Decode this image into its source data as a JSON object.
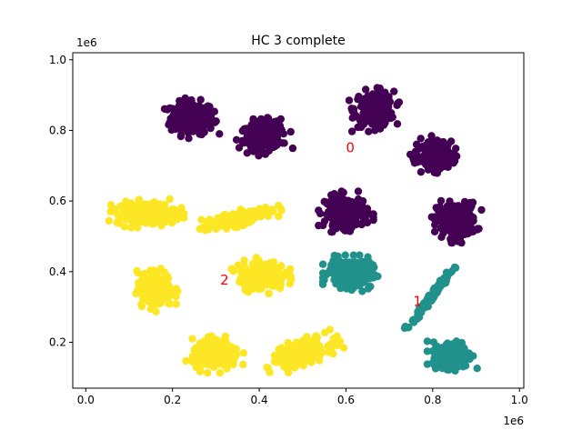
{
  "chart_data": {
    "type": "scatter",
    "title": "HC 3 complete",
    "xlabel": "",
    "ylabel": "",
    "x_offset_label": "1e6",
    "y_offset_label": "1e6",
    "xlim": [
      -0.03,
      1.01
    ],
    "ylim": [
      0.07,
      1.02
    ],
    "x_ticks": [
      0.0,
      0.2,
      0.4,
      0.6,
      0.8,
      1.0
    ],
    "x_tick_labels": [
      "0.0",
      "0.2",
      "0.4",
      "0.6",
      "0.8",
      "1.0"
    ],
    "y_ticks": [
      0.2,
      0.4,
      0.6,
      0.8,
      1.0
    ],
    "y_tick_labels": [
      "0.2",
      "0.4",
      "0.6",
      "0.8",
      "1.0"
    ],
    "grid": false,
    "colors": {
      "0": "#440154",
      "1": "#21918c",
      "2": "#fde725",
      "label": "#ff0000"
    },
    "cluster_labels": [
      {
        "text": "0",
        "x": 0.61,
        "y": 0.75
      },
      {
        "text": "1",
        "x": 0.765,
        "y": 0.315
      },
      {
        "text": "2",
        "x": 0.32,
        "y": 0.375
      }
    ],
    "blobs": [
      {
        "cluster": 0,
        "cx": 0.245,
        "cy": 0.835,
        "rx": 0.055,
        "ry": 0.05,
        "angle": 0,
        "n": 220
      },
      {
        "cluster": 0,
        "cx": 0.41,
        "cy": 0.785,
        "rx": 0.055,
        "ry": 0.045,
        "angle": 15,
        "n": 200
      },
      {
        "cluster": 0,
        "cx": 0.665,
        "cy": 0.86,
        "rx": 0.05,
        "ry": 0.055,
        "angle": 0,
        "n": 200
      },
      {
        "cluster": 0,
        "cx": 0.805,
        "cy": 0.73,
        "rx": 0.045,
        "ry": 0.05,
        "angle": -30,
        "n": 200
      },
      {
        "cluster": 0,
        "cx": 0.855,
        "cy": 0.545,
        "rx": 0.05,
        "ry": 0.055,
        "angle": 0,
        "n": 220
      },
      {
        "cluster": 0,
        "cx": 0.6,
        "cy": 0.57,
        "rx": 0.055,
        "ry": 0.05,
        "angle": 0,
        "n": 220
      },
      {
        "cluster": 1,
        "cx": 0.61,
        "cy": 0.395,
        "rx": 0.055,
        "ry": 0.045,
        "angle": 0,
        "n": 240
      },
      {
        "cluster": 1,
        "cx": 0.795,
        "cy": 0.325,
        "rx": 0.09,
        "ry": 0.008,
        "angle": 58,
        "n": 130
      },
      {
        "cluster": 1,
        "cx": 0.845,
        "cy": 0.165,
        "rx": 0.05,
        "ry": 0.04,
        "angle": 0,
        "n": 220
      },
      {
        "cluster": 2,
        "cx": 0.14,
        "cy": 0.565,
        "rx": 0.075,
        "ry": 0.035,
        "angle": 0,
        "n": 240
      },
      {
        "cluster": 2,
        "cx": 0.35,
        "cy": 0.55,
        "rx": 0.09,
        "ry": 0.02,
        "angle": 18,
        "n": 200
      },
      {
        "cluster": 2,
        "cx": 0.16,
        "cy": 0.35,
        "rx": 0.045,
        "ry": 0.055,
        "angle": 0,
        "n": 200
      },
      {
        "cluster": 2,
        "cx": 0.405,
        "cy": 0.39,
        "rx": 0.06,
        "ry": 0.045,
        "angle": 0,
        "n": 200
      },
      {
        "cluster": 2,
        "cx": 0.3,
        "cy": 0.165,
        "rx": 0.06,
        "ry": 0.045,
        "angle": 0,
        "n": 200
      },
      {
        "cluster": 2,
        "cx": 0.5,
        "cy": 0.17,
        "rx": 0.08,
        "ry": 0.035,
        "angle": 25,
        "n": 200
      }
    ]
  }
}
